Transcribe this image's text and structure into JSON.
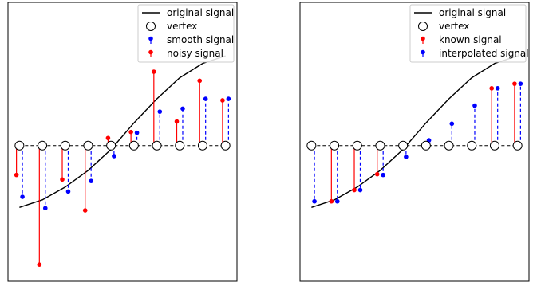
{
  "chart_data": [
    {
      "type": "stem",
      "xlim": [
        -0.5,
        9.5
      ],
      "ylim": [
        -1.8,
        1.9
      ],
      "vertex_x": [
        0,
        1,
        2,
        3,
        4,
        5,
        6,
        7,
        8,
        9
      ],
      "baseline": 0,
      "original_signal": [
        -0.82,
        -0.72,
        -0.55,
        -0.33,
        -0.05,
        0.3,
        0.62,
        0.9,
        1.09,
        1.19
      ],
      "series": [
        {
          "name": "smooth signal",
          "color": "#0000ff",
          "offset": 0.13,
          "linestyle": "dashed",
          "values": [
            -0.68,
            -0.83,
            -0.61,
            -0.47,
            -0.14,
            0.17,
            0.45,
            0.49,
            0.62,
            0.62
          ]
        },
        {
          "name": "noisy signal",
          "color": "#ff0000",
          "offset": -0.13,
          "linestyle": "solid",
          "values": [
            -0.39,
            -1.58,
            -0.45,
            -0.86,
            0.1,
            0.18,
            0.98,
            0.32,
            0.86,
            0.6
          ]
        }
      ],
      "legend": {
        "position": "upper right",
        "entries": [
          {
            "label": "original signal",
            "marker": "line",
            "color": "#000000"
          },
          {
            "label": "vertex",
            "marker": "circle",
            "color": "#000000"
          },
          {
            "label": "smooth signal",
            "marker": "stem",
            "color": "#0000ff"
          },
          {
            "label": "noisy signal",
            "marker": "stem",
            "color": "#ff0000"
          }
        ]
      }
    },
    {
      "type": "stem",
      "xlim": [
        -0.5,
        9.5
      ],
      "ylim": [
        -1.8,
        1.9
      ],
      "vertex_x": [
        0,
        1,
        2,
        3,
        4,
        5,
        6,
        7,
        8,
        9
      ],
      "baseline": 0,
      "original_signal": [
        -0.82,
        -0.72,
        -0.55,
        -0.33,
        -0.05,
        0.3,
        0.62,
        0.9,
        1.09,
        1.19
      ],
      "series": [
        {
          "name": "interpolated signal",
          "color": "#0000ff",
          "offset": 0.13,
          "linestyle": "dashed",
          "values": [
            -0.74,
            -0.74,
            -0.59,
            -0.39,
            -0.15,
            0.07,
            0.29,
            0.53,
            0.76,
            0.82
          ]
        },
        {
          "name": "known signal",
          "color": "#ff0000",
          "offset": -0.13,
          "linestyle": "solid",
          "values": [
            null,
            -0.74,
            -0.59,
            -0.38,
            null,
            null,
            null,
            null,
            0.76,
            0.82
          ]
        }
      ],
      "legend": {
        "position": "upper right",
        "entries": [
          {
            "label": "original signal",
            "marker": "line",
            "color": "#000000"
          },
          {
            "label": "vertex",
            "marker": "circle",
            "color": "#000000"
          },
          {
            "label": "known signal",
            "marker": "stem",
            "color": "#ff0000"
          },
          {
            "label": "interpolated signal",
            "marker": "stem",
            "color": "#0000ff"
          }
        ]
      }
    }
  ]
}
